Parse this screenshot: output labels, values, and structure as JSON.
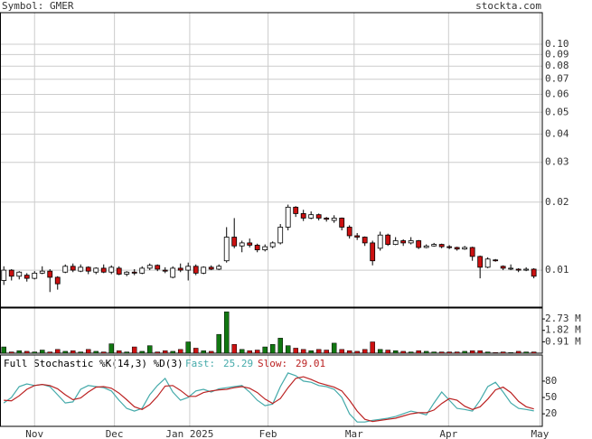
{
  "chart_data": {
    "type": "candlestick",
    "symbol_label": "Symbol: GMER",
    "site": "stockta.com",
    "log_scale": true,
    "grid": true,
    "up_color": "#ffffff",
    "down_color": "#cc1111",
    "xlim": [
      -0.5,
      70.1
    ],
    "xticks": [
      {
        "value": 4,
        "label": "Nov"
      },
      {
        "value": 14.4,
        "label": "Dec"
      },
      {
        "value": 24.2,
        "label": "Jan 2025"
      },
      {
        "value": 34.4,
        "label": "Feb"
      },
      {
        "value": 45.6,
        "label": "Mar"
      },
      {
        "value": 57.9,
        "label": "Apr"
      },
      {
        "value": 69.8,
        "label": "May"
      }
    ],
    "ylim": [
      0.00686,
      0.138
    ],
    "yticks": [
      {
        "value": 0.1,
        "label": "0.10"
      },
      0.09,
      0.08,
      0.07,
      0.06,
      0.05,
      0.04,
      0.03,
      0.02,
      0.01
    ],
    "open": [
      0.009,
      0.01,
      0.0094,
      0.0095,
      0.0092,
      0.0097,
      0.0099,
      0.0093,
      0.0098,
      0.0104,
      0.0099,
      0.0103,
      0.0098,
      0.0102,
      0.0098,
      0.0102,
      0.0096,
      0.0098,
      0.0097,
      0.0102,
      0.0105,
      0.01,
      0.0093,
      0.0102,
      0.01,
      0.0104,
      0.0097,
      0.0103,
      0.0101,
      0.011,
      0.014,
      0.0128,
      0.0132,
      0.0129,
      0.0123,
      0.0127,
      0.0132,
      0.0155,
      0.019,
      0.0178,
      0.017,
      0.0176,
      0.017,
      0.0166,
      0.017,
      0.0155,
      0.0142,
      0.014,
      0.0132,
      0.0125,
      0.0143,
      0.013,
      0.0135,
      0.0132,
      0.0135,
      0.0126,
      0.0128,
      0.013,
      0.0127,
      0.0126,
      0.0124,
      0.0126,
      0.0115,
      0.0103,
      0.0111,
      0.0104,
      0.0102,
      0.0101,
      0.01,
      0.0101
    ],
    "high": [
      0.0104,
      0.0101,
      0.0099,
      0.0097,
      0.0099,
      0.0104,
      0.0101,
      0.0094,
      0.0106,
      0.0107,
      0.0106,
      0.0104,
      0.0103,
      0.0106,
      0.0105,
      0.0104,
      0.0099,
      0.0101,
      0.0104,
      0.0107,
      0.0106,
      0.0103,
      0.0104,
      0.0107,
      0.0108,
      0.0106,
      0.0104,
      0.0105,
      0.0106,
      0.0155,
      0.017,
      0.0135,
      0.0138,
      0.0131,
      0.013,
      0.0134,
      0.016,
      0.0195,
      0.0192,
      0.0185,
      0.0182,
      0.0178,
      0.0172,
      0.0175,
      0.0171,
      0.0158,
      0.0146,
      0.0141,
      0.0135,
      0.0148,
      0.0145,
      0.014,
      0.0137,
      0.014,
      0.0136,
      0.013,
      0.0132,
      0.0131,
      0.0129,
      0.0127,
      0.0128,
      0.0127,
      0.0116,
      0.0114,
      0.0112,
      0.0105,
      0.0106,
      0.0102,
      0.0103,
      0.0102
    ],
    "low": [
      0.0086,
      0.009,
      0.0091,
      0.0089,
      0.0091,
      0.0096,
      0.008,
      0.0082,
      0.0097,
      0.0098,
      0.0098,
      0.0096,
      0.0096,
      0.0097,
      0.0096,
      0.0095,
      0.0094,
      0.0095,
      0.0096,
      0.01,
      0.0099,
      0.0097,
      0.0092,
      0.0098,
      0.009,
      0.0095,
      0.0096,
      0.01,
      0.01,
      0.0108,
      0.0125,
      0.012,
      0.0126,
      0.012,
      0.0121,
      0.0125,
      0.013,
      0.015,
      0.0172,
      0.0165,
      0.0168,
      0.0166,
      0.0164,
      0.0162,
      0.015,
      0.0138,
      0.0136,
      0.0128,
      0.0105,
      0.0122,
      0.0128,
      0.0129,
      0.0128,
      0.013,
      0.0124,
      0.0125,
      0.0127,
      0.0125,
      0.0124,
      0.0122,
      0.0123,
      0.011,
      0.0092,
      0.0102,
      0.0109,
      0.01,
      0.01,
      0.0098,
      0.0099,
      0.0092
    ],
    "close": [
      0.01,
      0.0094,
      0.0098,
      0.0092,
      0.0097,
      0.0099,
      0.0093,
      0.0087,
      0.0104,
      0.01,
      0.0103,
      0.0099,
      0.0102,
      0.0098,
      0.0103,
      0.0096,
      0.0098,
      0.0097,
      0.0102,
      0.0105,
      0.0101,
      0.0099,
      0.0102,
      0.01,
      0.0104,
      0.0097,
      0.0103,
      0.0101,
      0.0104,
      0.014,
      0.0128,
      0.0132,
      0.0129,
      0.0123,
      0.0127,
      0.0132,
      0.0155,
      0.019,
      0.0178,
      0.017,
      0.0176,
      0.017,
      0.0168,
      0.017,
      0.0155,
      0.0142,
      0.014,
      0.0132,
      0.011,
      0.0143,
      0.013,
      0.0135,
      0.0132,
      0.0135,
      0.0126,
      0.0128,
      0.013,
      0.0127,
      0.0126,
      0.0124,
      0.0126,
      0.0115,
      0.0103,
      0.0112,
      0.011,
      0.0102,
      0.0102,
      0.01,
      0.0101,
      0.0094
    ],
    "volume": {
      "ylim": [
        0,
        3.6
      ],
      "yticks": [
        {
          "value": 2.73,
          "label": "2.73 M"
        },
        {
          "value": 1.82,
          "label": "1.82 M"
        },
        {
          "value": 0.91,
          "label": "0.91 M"
        }
      ],
      "up_color": "#117711",
      "down_color": "#cc1111",
      "values": [
        0.5,
        0.1,
        0.2,
        0.15,
        0.1,
        0.25,
        0.1,
        0.3,
        0.15,
        0.2,
        0.1,
        0.3,
        0.15,
        0.1,
        0.75,
        0.2,
        0.1,
        0.5,
        0.15,
        0.6,
        0.1,
        0.2,
        0.15,
        0.3,
        0.9,
        0.4,
        0.2,
        0.15,
        1.5,
        3.3,
        0.7,
        0.3,
        0.2,
        0.25,
        0.5,
        0.7,
        1.2,
        0.6,
        0.4,
        0.3,
        0.2,
        0.3,
        0.25,
        0.8,
        0.3,
        0.2,
        0.15,
        0.3,
        0.9,
        0.3,
        0.25,
        0.2,
        0.15,
        0.1,
        0.2,
        0.15,
        0.1,
        0.1,
        0.1,
        0.1,
        0.15,
        0.2,
        0.2,
        0.1,
        0.05,
        0.1,
        0.05,
        0.15,
        0.1,
        0.1
      ]
    },
    "stochastic": {
      "title": "Full Stochastic %K(14,3) %D(3)",
      "ylim": [
        -3,
        128
      ],
      "yticks": [
        80,
        50,
        20
      ],
      "series": [
        {
          "name": "Fast:",
          "color": "#44aaaa",
          "values": [
            40,
            50,
            70,
            75,
            72,
            74,
            70,
            55,
            40,
            42,
            65,
            72,
            70,
            68,
            62,
            45,
            30,
            25,
            30,
            55,
            72,
            85,
            60,
            45,
            50,
            62,
            65,
            60,
            66,
            68,
            70,
            72,
            60,
            45,
            35,
            38,
            70,
            95,
            90,
            80,
            78,
            72,
            70,
            65,
            50,
            20,
            5,
            5,
            8,
            10,
            12,
            15,
            20,
            25,
            22,
            18,
            40,
            60,
            45,
            30,
            28,
            25,
            45,
            70,
            78,
            60,
            40,
            30,
            28,
            25.29
          ]
        },
        {
          "name": "Slow:",
          "color": "#bb2222",
          "values": [
            45,
            44,
            53,
            65,
            72,
            74,
            72,
            66,
            55,
            46,
            49,
            60,
            69,
            70,
            67,
            58,
            46,
            33,
            28,
            37,
            52,
            71,
            72,
            63,
            52,
            52,
            59,
            62,
            64,
            65,
            68,
            70,
            67,
            59,
            47,
            39,
            48,
            68,
            85,
            88,
            83,
            77,
            73,
            69,
            62,
            45,
            25,
            10,
            6,
            8,
            10,
            12,
            16,
            20,
            22,
            22,
            27,
            39,
            48,
            45,
            34,
            28,
            33,
            47,
            64,
            69,
            59,
            43,
            33,
            29.01
          ]
        }
      ]
    }
  }
}
